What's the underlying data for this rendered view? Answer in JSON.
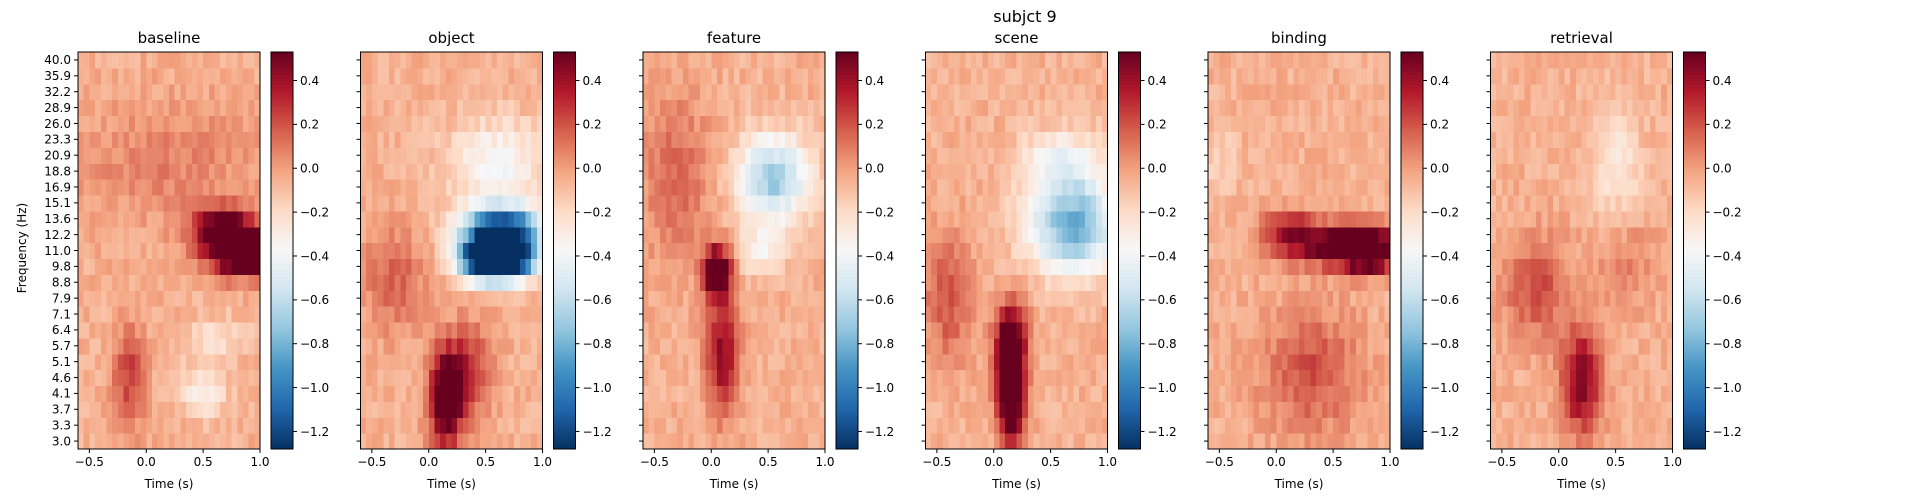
{
  "chart_data": {
    "type": "heatmap",
    "title": "subjct 9",
    "xlabel": "Time (s)",
    "ylabel": "Frequency (Hz)",
    "xlim": [
      -0.6,
      1.0
    ],
    "x_ticks": [
      -0.5,
      0.0,
      0.5,
      1.0
    ],
    "x_tick_labels": [
      "−0.5",
      "0.0",
      "0.5",
      "1.0"
    ],
    "frequencies": [
      3.0,
      3.3,
      3.7,
      4.1,
      4.6,
      5.1,
      5.7,
      6.4,
      7.1,
      7.9,
      8.8,
      9.8,
      11.0,
      12.2,
      13.6,
      15.1,
      16.9,
      18.8,
      20.9,
      23.3,
      26.0,
      28.9,
      32.2,
      35.9,
      40.0
    ],
    "frequency_tick_labels": [
      "3.0",
      "3.3",
      "3.7",
      "4.1",
      "4.6",
      "5.1",
      "5.7",
      "6.4",
      "7.1",
      "7.9",
      "8.8",
      "9.8",
      "11.0",
      "12.2",
      "13.6",
      "15.1",
      "16.9",
      "18.8",
      "20.9",
      "23.3",
      "26.0",
      "28.9",
      "32.2",
      "35.9",
      "40.0"
    ],
    "colormap": "RdBu_r",
    "color_range": [
      -1.28,
      0.53
    ],
    "colorbar_ticks": [
      0.4,
      0.2,
      0.0,
      -0.2,
      -0.4,
      -0.6,
      -0.8,
      -1.0,
      -1.2
    ],
    "colorbar_tick_labels": [
      "0.4",
      "0.2",
      "0.0",
      "−0.2",
      "−0.4",
      "−0.6",
      "−0.8",
      "−1.0",
      "−1.2"
    ],
    "panels": [
      {
        "name": "baseline",
        "blobs": [
          {
            "t": 0.85,
            "f": 11.0,
            "dt": 0.22,
            "df": 0.11,
            "amp": 0.5
          },
          {
            "t": 0.65,
            "f": 13.0,
            "dt": 0.18,
            "df": 0.09,
            "amp": 0.25
          },
          {
            "t": -0.15,
            "f": 4.6,
            "dt": 0.1,
            "df": 0.25,
            "amp": 0.14
          },
          {
            "t": 0.5,
            "f": 4.2,
            "dt": 0.14,
            "df": 0.12,
            "amp": -0.12
          },
          {
            "t": 0.6,
            "f": 6.0,
            "dt": 0.2,
            "df": 0.1,
            "amp": -0.08
          },
          {
            "t": 0.2,
            "f": 20.0,
            "dt": 0.6,
            "df": 0.3,
            "amp": 0.06
          }
        ]
      },
      {
        "name": "object",
        "blobs": [
          {
            "t": 0.6,
            "f": 10.5,
            "dt": 0.2,
            "df": 0.1,
            "amp": -1.2
          },
          {
            "t": 0.65,
            "f": 13.0,
            "dt": 0.25,
            "df": 0.1,
            "amp": -0.5
          },
          {
            "t": 0.6,
            "f": 20.0,
            "dt": 0.3,
            "df": 0.2,
            "amp": -0.15
          },
          {
            "t": 0.15,
            "f": 4.0,
            "dt": 0.1,
            "df": 0.22,
            "amp": 0.38
          },
          {
            "t": 0.35,
            "f": 4.8,
            "dt": 0.14,
            "df": 0.22,
            "amp": 0.16
          },
          {
            "t": -0.3,
            "f": 9.0,
            "dt": 0.2,
            "df": 0.25,
            "amp": 0.1
          }
        ]
      },
      {
        "name": "feature",
        "blobs": [
          {
            "t": 0.05,
            "f": 9.5,
            "dt": 0.08,
            "df": 0.12,
            "amp": 0.4
          },
          {
            "t": 0.1,
            "f": 5.5,
            "dt": 0.1,
            "df": 0.3,
            "amp": 0.22
          },
          {
            "t": 0.55,
            "f": 18.0,
            "dt": 0.22,
            "df": 0.2,
            "amp": -0.3
          },
          {
            "t": 0.45,
            "f": 11.0,
            "dt": 0.15,
            "df": 0.12,
            "amp": -0.12
          },
          {
            "t": -0.3,
            "f": 18.0,
            "dt": 0.2,
            "df": 0.4,
            "amp": 0.1
          }
        ]
      },
      {
        "name": "scene",
        "blobs": [
          {
            "t": 0.15,
            "f": 4.2,
            "dt": 0.08,
            "df": 0.25,
            "amp": 0.45
          },
          {
            "t": 0.15,
            "f": 6.0,
            "dt": 0.1,
            "df": 0.18,
            "amp": 0.25
          },
          {
            "t": 0.7,
            "f": 13.0,
            "dt": 0.28,
            "df": 0.22,
            "amp": -0.35
          },
          {
            "t": 0.6,
            "f": 20.0,
            "dt": 0.25,
            "df": 0.15,
            "amp": -0.15
          },
          {
            "t": -0.4,
            "f": 8.0,
            "dt": 0.15,
            "df": 0.3,
            "amp": 0.12
          }
        ]
      },
      {
        "name": "binding",
        "blobs": [
          {
            "t": 0.8,
            "f": 11.0,
            "dt": 0.18,
            "df": 0.09,
            "amp": 0.52
          },
          {
            "t": 0.4,
            "f": 11.5,
            "dt": 0.28,
            "df": 0.1,
            "amp": 0.25
          },
          {
            "t": 0.1,
            "f": 13.0,
            "dt": 0.15,
            "df": 0.08,
            "amp": 0.15
          },
          {
            "t": 0.3,
            "f": 4.8,
            "dt": 0.3,
            "df": 0.3,
            "amp": 0.12
          },
          {
            "t": -0.5,
            "f": 20.0,
            "dt": 0.1,
            "df": 0.2,
            "amp": -0.05
          }
        ]
      },
      {
        "name": "retrieval",
        "blobs": [
          {
            "t": 0.2,
            "f": 4.5,
            "dt": 0.12,
            "df": 0.25,
            "amp": 0.25
          },
          {
            "t": -0.2,
            "f": 8.5,
            "dt": 0.2,
            "df": 0.25,
            "amp": 0.12
          },
          {
            "t": 0.5,
            "f": 20.0,
            "dt": 0.15,
            "df": 0.25,
            "amp": -0.1
          },
          {
            "t": 0.6,
            "f": 10.0,
            "dt": 0.2,
            "df": 0.2,
            "amp": 0.06
          }
        ]
      }
    ]
  }
}
